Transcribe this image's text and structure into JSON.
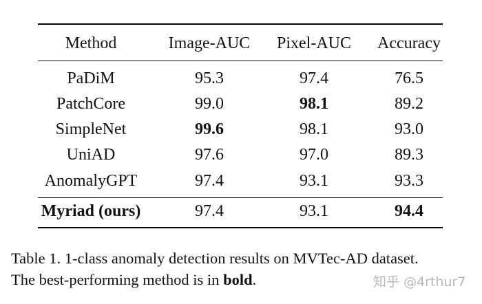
{
  "table": {
    "columns": [
      "Method",
      "Image-AUC",
      "Pixel-AUC",
      "Accuracy"
    ],
    "rows": [
      {
        "method": "PaDiM",
        "image_auc": "95.3",
        "pixel_auc": "97.4",
        "accuracy": "76.5"
      },
      {
        "method": "PatchCore",
        "image_auc": "99.0",
        "pixel_auc": "98.1",
        "accuracy": "89.2"
      },
      {
        "method": "SimpleNet",
        "image_auc": "99.6",
        "pixel_auc": "98.1",
        "accuracy": "93.0"
      },
      {
        "method": "UniAD",
        "image_auc": "97.6",
        "pixel_auc": "97.0",
        "accuracy": "89.3"
      },
      {
        "method": "AnomalyGPT",
        "image_auc": "97.4",
        "pixel_auc": "93.1",
        "accuracy": "93.3"
      }
    ],
    "ours": {
      "method": "Myriad (ours)",
      "image_auc": "97.4",
      "pixel_auc": "93.1",
      "accuracy": "94.4"
    }
  },
  "caption": {
    "line1": "Table 1. 1-class anomaly detection results on MVTec-AD dataset.",
    "line2_prefix": "The best-performing method is in ",
    "line2_bold": "bold",
    "line2_suffix": "."
  },
  "watermark": "知乎 @4rthur7"
}
